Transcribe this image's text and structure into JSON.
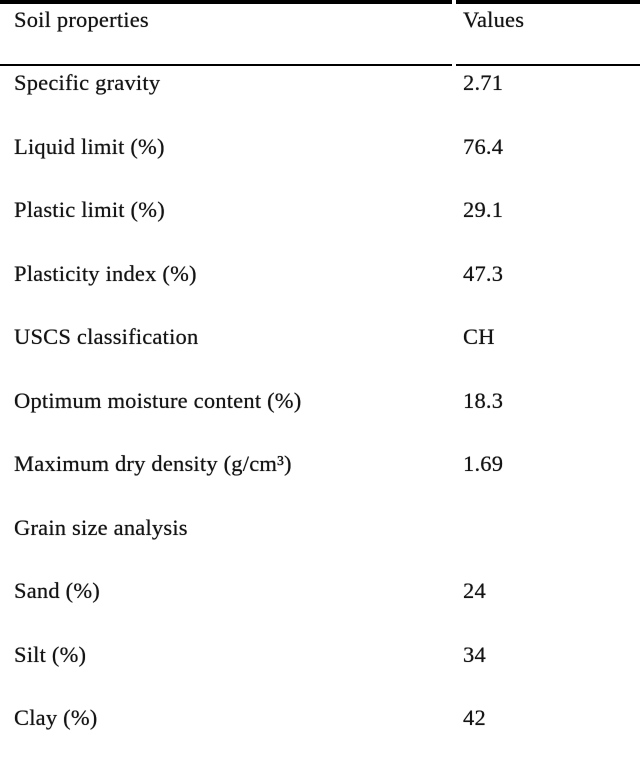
{
  "table": {
    "columns": [
      "Soil properties",
      "Values"
    ],
    "rows": [
      {
        "property": "Specific gravity",
        "value": "2.71"
      },
      {
        "property": "Liquid limit (%)",
        "value": "76.4"
      },
      {
        "property": "Plastic limit (%)",
        "value": "29.1"
      },
      {
        "property": "Plasticity index (%)",
        "value": "47.3"
      },
      {
        "property": "USCS classification",
        "value": "CH"
      },
      {
        "property": "Optimum moisture content (%)",
        "value": "18.3"
      },
      {
        "property": "Maximum dry density (g/cm³)",
        "value": "1.69"
      },
      {
        "property": "Grain size analysis",
        "value": ""
      },
      {
        "property": "Sand (%)",
        "value": "24"
      },
      {
        "property": "Silt (%)",
        "value": "34"
      },
      {
        "property": "Clay (%)",
        "value": "42"
      }
    ]
  },
  "colors": {
    "text": "#141414",
    "background": "#ffffff",
    "rule": "#000000"
  }
}
